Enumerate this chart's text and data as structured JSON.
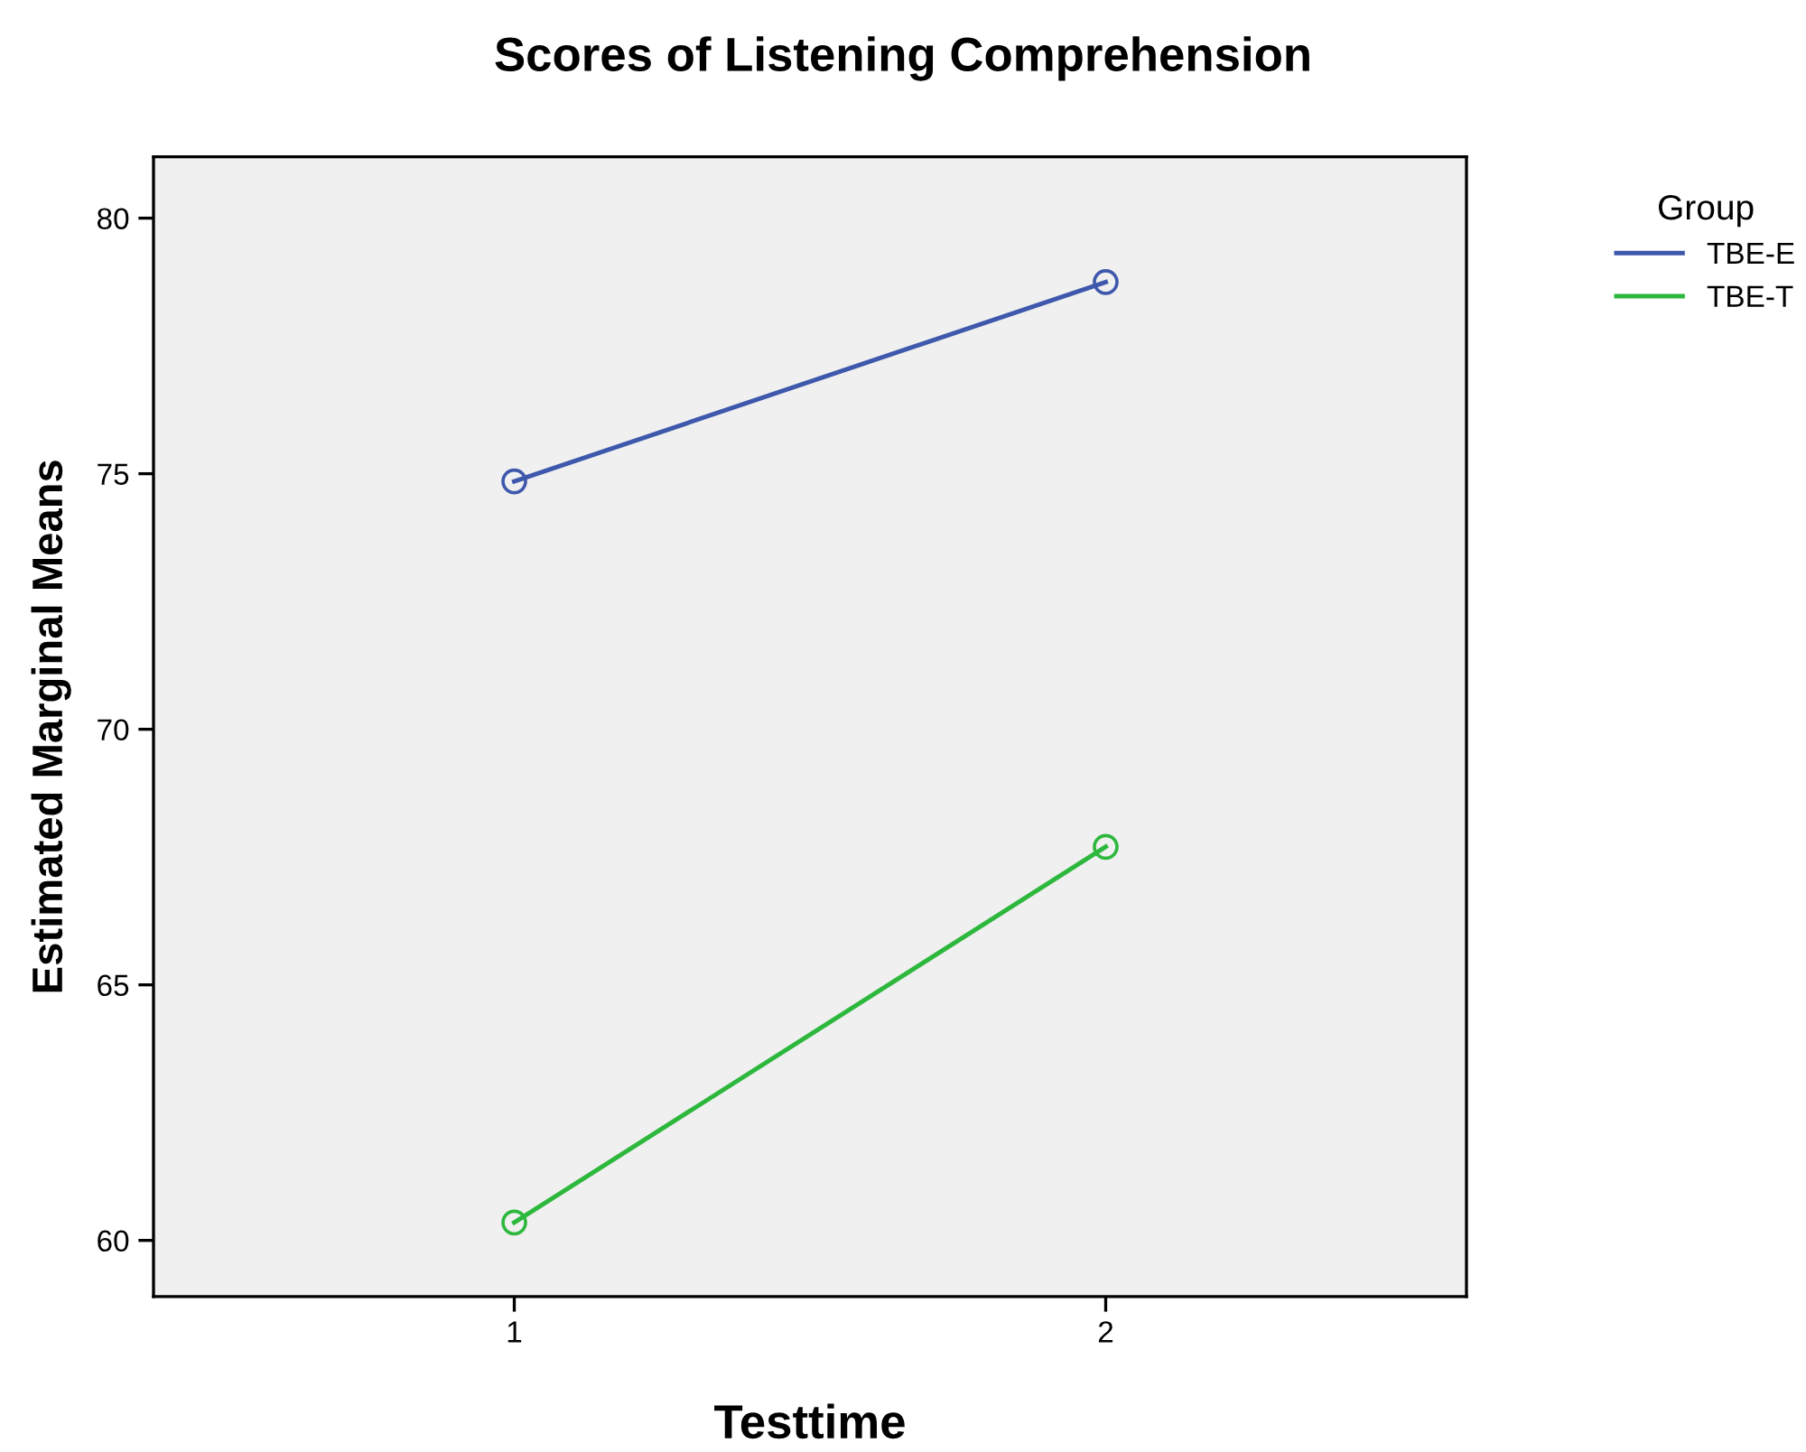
{
  "chart_data": {
    "type": "line",
    "title": "Scores of Listening Comprehension",
    "xlabel": "Testtime",
    "ylabel": "Estimated Marginal Means",
    "legend_title": "Group",
    "x": [
      1,
      2
    ],
    "series": [
      {
        "name": "TBE-E",
        "color": "#3e58ac",
        "values": [
          74.85,
          78.75
        ]
      },
      {
        "name": "TBE-T",
        "color": "#2db83d",
        "values": [
          60.35,
          67.7
        ]
      }
    ],
    "xlim": [
      0.39,
      2.61
    ],
    "xticks": [
      1,
      2
    ],
    "ylim": [
      58.9,
      81.2
    ],
    "yticks": [
      60,
      65,
      70,
      75,
      80
    ],
    "grid": false,
    "legend": "top right",
    "marker": "circle",
    "line_style": "solid"
  }
}
